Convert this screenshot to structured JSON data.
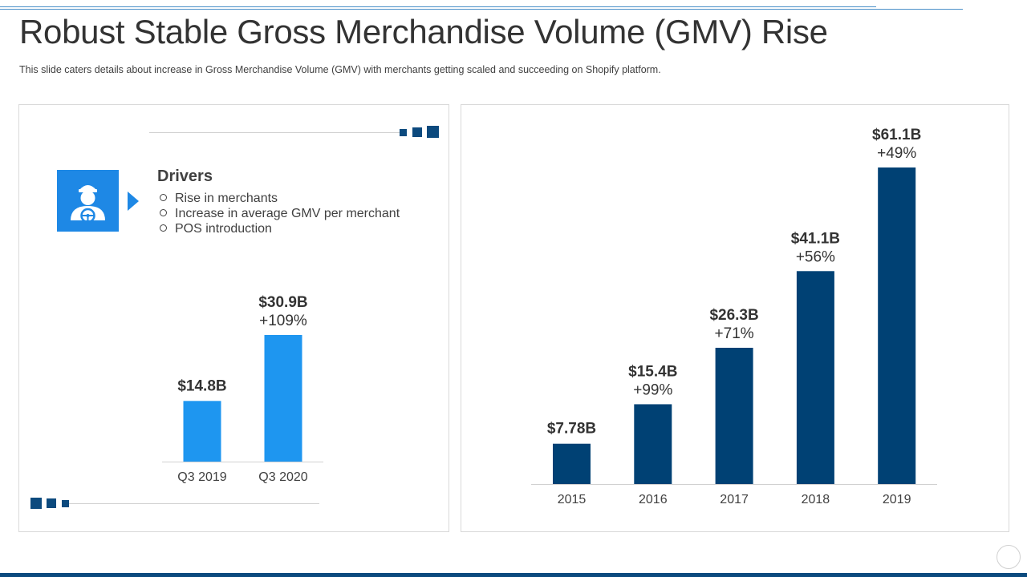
{
  "page": {
    "title": "Robust Stable Gross Merchandise Volume (GMV) Rise",
    "subtitle": "This slide caters details about increase in Gross Merchandise Volume (GMV) with merchants getting scaled and succeeding on Shopify platform."
  },
  "drivers": {
    "icon": "driver-steering-wheel-icon",
    "title": "Drivers",
    "items": [
      "Rise in merchants",
      "Increase  in average GMV per merchant",
      "POS introduction"
    ]
  },
  "colors": {
    "accent_dark": "#0c4a7e",
    "accent_light": "#1e96f0",
    "icon_box": "#1e88e5"
  },
  "chart_data": [
    {
      "type": "bar",
      "title": "",
      "xlabel": "",
      "ylabel": "",
      "categories": [
        "Q3 2019",
        "Q3 2020"
      ],
      "values": [
        14.8,
        30.9
      ],
      "value_labels": [
        "$14.8B",
        "$30.9B"
      ],
      "growth_labels": [
        "",
        "+109%"
      ],
      "ylim": [
        0,
        30.9
      ],
      "grid": false,
      "color": "#1e96f0"
    },
    {
      "type": "bar",
      "title": "",
      "xlabel": "",
      "ylabel": "",
      "categories": [
        "2015",
        "2016",
        "2017",
        "2018",
        "2019"
      ],
      "values": [
        7.78,
        15.4,
        26.3,
        41.1,
        61.1
      ],
      "value_labels": [
        "$7.78B",
        "$15.4B",
        "$26.3B",
        "$41.1B",
        "$61.1B"
      ],
      "growth_labels": [
        "",
        "+99%",
        "+71%",
        "+56%",
        "+49%"
      ],
      "ylim": [
        0,
        61.1
      ],
      "grid": false,
      "color": "#004174"
    }
  ]
}
